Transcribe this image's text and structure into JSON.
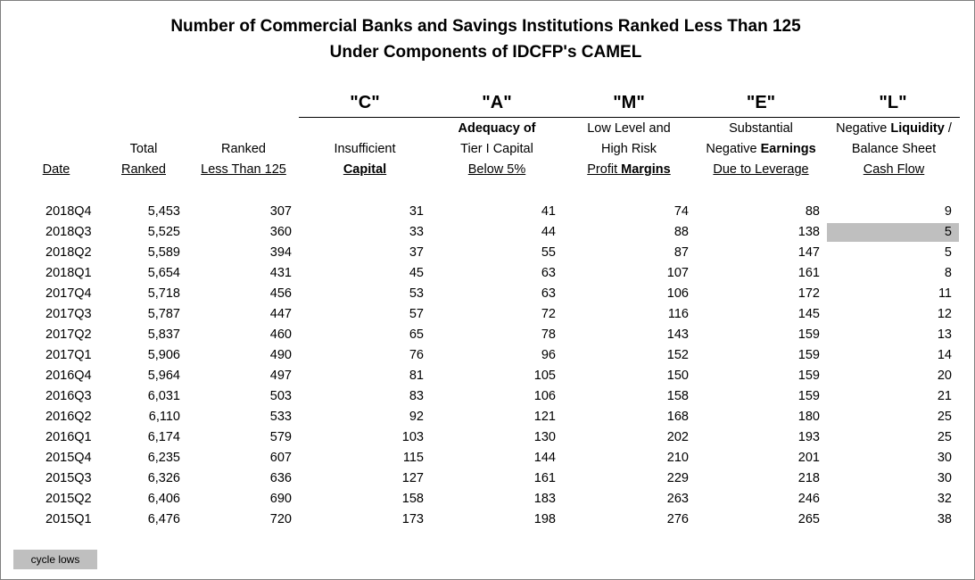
{
  "title": {
    "line1": "Number of Commercial Banks and Savings Institutions Ranked Less Than 125",
    "line2": "Under Components of IDCFP's CAMEL"
  },
  "camel_letters": {
    "c": "\"C\"",
    "a": "\"A\"",
    "m": "\"M\"",
    "e": "\"E\"",
    "l": "\"L\""
  },
  "headers": {
    "date": "Date",
    "total": {
      "line1": "Total",
      "line2": "Ranked"
    },
    "ranked": {
      "line1": "Ranked",
      "line2": "Less Than 125"
    },
    "c": {
      "line1": "Insufficient",
      "line2": "Capital"
    },
    "a": {
      "line1": "Adequacy of",
      "line2": "Tier I Capital",
      "line3": "Below 5%"
    },
    "m": {
      "line1": "Low Level and",
      "line2": "High Risk",
      "line3a": "Profit ",
      "line3b": "Margins"
    },
    "e": {
      "line1": "Substantial",
      "line2a": "Negative ",
      "line2b": "Earnings",
      "line3": "Due to Leverage"
    },
    "l": {
      "line1a": "Negative ",
      "line1b": "Liquidity",
      "line1c": " /",
      "line2": "Balance Sheet",
      "line3": "Cash Flow"
    }
  },
  "rows": [
    {
      "date": "2018Q4",
      "total": "5,453",
      "ranked": "307",
      "c": "31",
      "a": "41",
      "m": "74",
      "e": "88",
      "l": "9"
    },
    {
      "date": "2018Q3",
      "total": "5,525",
      "ranked": "360",
      "c": "33",
      "a": "44",
      "m": "88",
      "e": "138",
      "l": "5"
    },
    {
      "date": "2018Q2",
      "total": "5,589",
      "ranked": "394",
      "c": "37",
      "a": "55",
      "m": "87",
      "e": "147",
      "l": "5"
    },
    {
      "date": "2018Q1",
      "total": "5,654",
      "ranked": "431",
      "c": "45",
      "a": "63",
      "m": "107",
      "e": "161",
      "l": "8"
    },
    {
      "date": "2017Q4",
      "total": "5,718",
      "ranked": "456",
      "c": "53",
      "a": "63",
      "m": "106",
      "e": "172",
      "l": "11"
    },
    {
      "date": "2017Q3",
      "total": "5,787",
      "ranked": "447",
      "c": "57",
      "a": "72",
      "m": "116",
      "e": "145",
      "l": "12"
    },
    {
      "date": "2017Q2",
      "total": "5,837",
      "ranked": "460",
      "c": "65",
      "a": "78",
      "m": "143",
      "e": "159",
      "l": "13"
    },
    {
      "date": "2017Q1",
      "total": "5,906",
      "ranked": "490",
      "c": "76",
      "a": "96",
      "m": "152",
      "e": "159",
      "l": "14"
    },
    {
      "date": "2016Q4",
      "total": "5,964",
      "ranked": "497",
      "c": "81",
      "a": "105",
      "m": "150",
      "e": "159",
      "l": "20"
    },
    {
      "date": "2016Q3",
      "total": "6,031",
      "ranked": "503",
      "c": "83",
      "a": "106",
      "m": "158",
      "e": "159",
      "l": "21"
    },
    {
      "date": "2016Q2",
      "total": "6,110",
      "ranked": "533",
      "c": "92",
      "a": "121",
      "m": "168",
      "e": "180",
      "l": "25"
    },
    {
      "date": "2016Q1",
      "total": "6,174",
      "ranked": "579",
      "c": "103",
      "a": "130",
      "m": "202",
      "e": "193",
      "l": "25"
    },
    {
      "date": "2015Q4",
      "total": "6,235",
      "ranked": "607",
      "c": "115",
      "a": "144",
      "m": "210",
      "e": "201",
      "l": "30"
    },
    {
      "date": "2015Q3",
      "total": "6,326",
      "ranked": "636",
      "c": "127",
      "a": "161",
      "m": "229",
      "e": "218",
      "l": "30"
    },
    {
      "date": "2015Q2",
      "total": "6,406",
      "ranked": "690",
      "c": "158",
      "a": "183",
      "m": "263",
      "e": "246",
      "l": "32"
    },
    {
      "date": "2015Q1",
      "total": "6,476",
      "ranked": "720",
      "c": "173",
      "a": "198",
      "m": "276",
      "e": "265",
      "l": "38"
    }
  ],
  "highlight": {
    "row": "2018Q3",
    "column": "l",
    "color": "#bfbfbf"
  },
  "legend": {
    "label": "cycle lows",
    "color": "#bfbfbf"
  }
}
